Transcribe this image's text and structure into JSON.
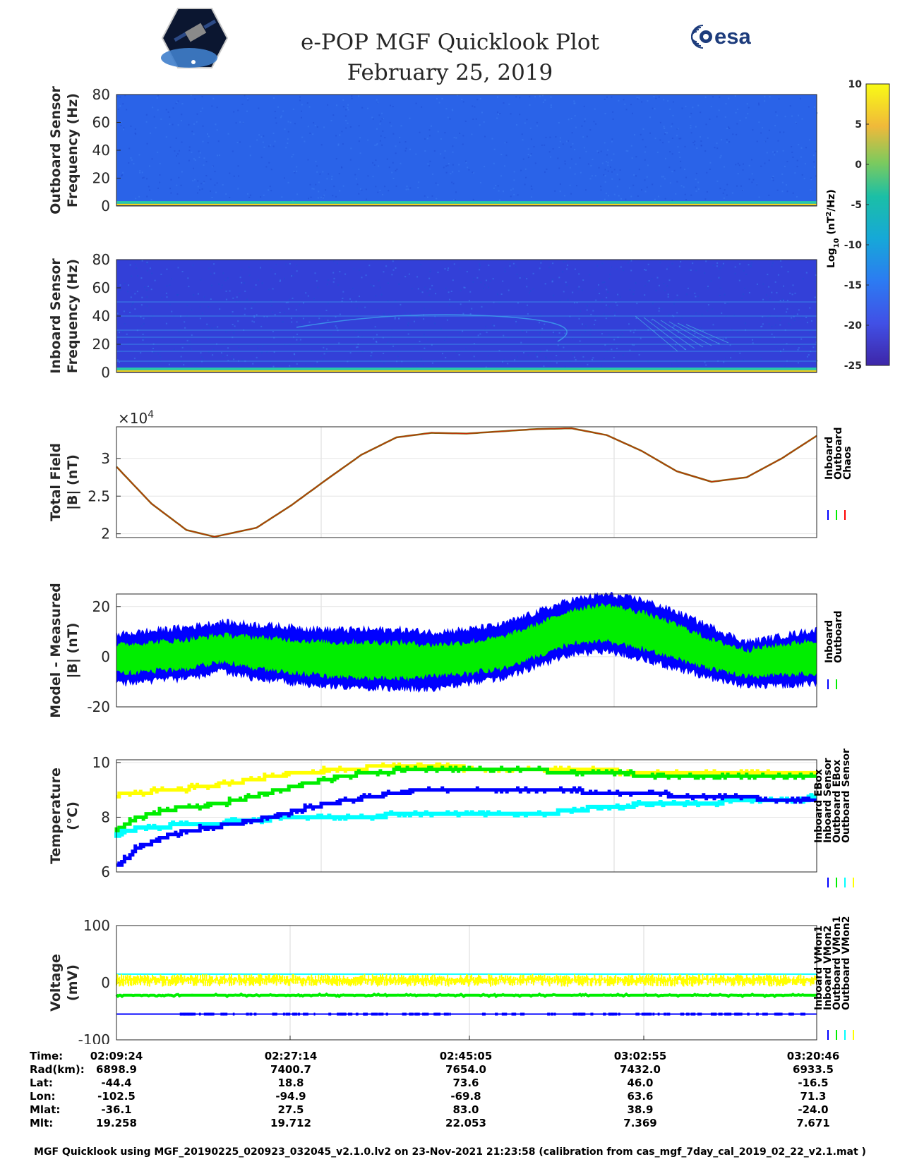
{
  "title": "e-POP MGF Quicklook Plot",
  "date": "February 25, 2019",
  "logos": {
    "epop_icon": "cassiope-mission-logo",
    "esa_text": "esa"
  },
  "colorbar": {
    "label": "Log10 (nT^2/Hz)",
    "label_main": "Log",
    "label_sub": "10",
    "label_unit": " (nT",
    "label_sup": "2",
    "label_tail": "/Hz)",
    "ticks": [
      "10",
      "5",
      "0",
      "-5",
      "-10",
      "-15",
      "-20",
      "-25"
    ],
    "range": [
      -25,
      10
    ]
  },
  "colors": {
    "inboard": "#0000ff",
    "outboard": "#00ee00",
    "chaos": "#ff0000",
    "cyan": "#00ffff",
    "yellow": "#ffff00",
    "spec_bg_outboard": "#2a63e8",
    "spec_bg_inboard": "#3340d8"
  },
  "chart_data": [
    {
      "type": "heatmap",
      "ylabel_line1": "Outboard Sensor",
      "ylabel_line2": "Frequency (Hz)",
      "ylim": [
        0,
        80
      ],
      "yticks": [
        "80",
        "60",
        "40",
        "20",
        "0"
      ],
      "description_values": {
        "background_log10_power": -13,
        "low_freq_band_log10_power": 5
      }
    },
    {
      "type": "heatmap",
      "ylabel_line1": "Inboard Sensor",
      "ylabel_line2": "Frequency (Hz)",
      "ylim": [
        0,
        80
      ],
      "yticks": [
        "80",
        "60",
        "40",
        "20",
        "0"
      ],
      "tone_lines_hz": [
        50,
        40,
        30,
        25,
        20,
        15,
        8
      ]
    },
    {
      "type": "line",
      "ylabel_line1": "Total Field",
      "ylabel_line2": "|B| (nT)",
      "multiplier": "×10",
      "multiplier_exp": "4",
      "ylim": [
        1.95,
        3.42
      ],
      "yticks": [
        "3",
        "2.5",
        "2"
      ],
      "legend": [
        "Inboard",
        "Outboard",
        "Chaos"
      ],
      "x": [
        0,
        0.05,
        0.1,
        0.14,
        0.2,
        0.25,
        0.3,
        0.35,
        0.4,
        0.45,
        0.5,
        0.55,
        0.6,
        0.65,
        0.7,
        0.75,
        0.8,
        0.85,
        0.9,
        0.95,
        1.0
      ],
      "series": [
        {
          "name": "Chaos",
          "values": [
            2.89,
            2.4,
            2.05,
            1.96,
            2.08,
            2.38,
            2.72,
            3.05,
            3.28,
            3.34,
            3.33,
            3.36,
            3.39,
            3.4,
            3.31,
            3.1,
            2.83,
            2.69,
            2.75,
            3.0,
            3.3
          ]
        }
      ]
    },
    {
      "type": "area",
      "ylabel_line1": "Model - Measured",
      "ylabel_line2": "|B| (nT)",
      "ylim": [
        -20,
        25
      ],
      "yticks": [
        "20",
        "0",
        "-20"
      ],
      "legend": [
        "Inboard",
        "Outboard"
      ],
      "x": [
        0,
        0.1,
        0.15,
        0.2,
        0.3,
        0.4,
        0.45,
        0.5,
        0.55,
        0.6,
        0.65,
        0.7,
        0.75,
        0.8,
        0.85,
        0.9,
        1.0
      ],
      "series": [
        {
          "name": "Inboard_upper",
          "values": [
            8,
            11,
            13,
            12,
            10,
            10,
            9,
            10,
            12,
            17,
            22,
            24,
            22,
            17,
            11,
            5,
            10
          ]
        },
        {
          "name": "Inboard_lower",
          "values": [
            -10,
            -8,
            -5,
            -8,
            -11,
            -12,
            -12,
            -10,
            -8,
            -3,
            2,
            3,
            0,
            -4,
            -8,
            -11,
            -10
          ]
        },
        {
          "name": "Outboard_upper",
          "values": [
            4,
            6,
            8,
            7,
            5,
            5,
            4,
            5,
            7,
            12,
            18,
            20,
            17,
            12,
            6,
            2,
            6
          ]
        },
        {
          "name": "Outboard_lower",
          "values": [
            -6,
            -4,
            -1,
            -4,
            -7,
            -8,
            -7,
            -6,
            -4,
            1,
            6,
            7,
            4,
            0,
            -4,
            -7,
            -6
          ]
        }
      ]
    },
    {
      "type": "line",
      "ylabel_line1": "Temperature",
      "ylabel_line2": "(°C)",
      "ylim": [
        6,
        10.1
      ],
      "yticks": [
        "10",
        "8",
        "6"
      ],
      "legend": [
        "Inboard EBox",
        "Inboard Sensor",
        "Outboard EBox",
        "Outboard Sensor"
      ],
      "x": [
        0,
        0.03,
        0.08,
        0.15,
        0.2,
        0.25,
        0.3,
        0.35,
        0.4,
        0.45,
        0.5,
        0.6,
        0.7,
        0.8,
        0.9,
        1.0
      ],
      "series": [
        {
          "name": "Inboard EBox",
          "values": [
            6.2,
            6.9,
            7.4,
            7.7,
            7.9,
            8.2,
            8.5,
            8.7,
            8.9,
            9.0,
            9.0,
            9.0,
            8.9,
            8.8,
            8.7,
            8.6
          ]
        },
        {
          "name": "Inboard Sensor",
          "values": [
            7.5,
            8.0,
            8.3,
            8.5,
            8.8,
            9.1,
            9.4,
            9.6,
            9.7,
            9.8,
            9.8,
            9.7,
            9.6,
            9.5,
            9.5,
            9.5
          ]
        },
        {
          "name": "Outboard EBox",
          "values": [
            7.4,
            7.6,
            7.7,
            7.8,
            7.9,
            8.0,
            8.0,
            8.0,
            8.1,
            8.1,
            8.1,
            8.1,
            8.4,
            8.5,
            8.6,
            8.7
          ]
        },
        {
          "name": "Outboard Sensor",
          "values": [
            8.8,
            8.9,
            9.0,
            9.2,
            9.4,
            9.6,
            9.7,
            9.8,
            9.9,
            9.9,
            9.8,
            9.7,
            9.7,
            9.6,
            9.6,
            9.6
          ]
        }
      ]
    },
    {
      "type": "line",
      "ylabel_line1": "Voltage",
      "ylabel_line2": "(mV)",
      "ylim": [
        -100,
        100
      ],
      "yticks": [
        "100",
        "0",
        "-100"
      ],
      "legend": [
        "Inboard VMon1",
        "Inboard VMon2",
        "Outboard VMon1",
        "Outboard VMon2"
      ],
      "series": [
        {
          "name": "Inboard VMon1",
          "values_level": -55
        },
        {
          "name": "Inboard VMon2",
          "values_level": -22
        },
        {
          "name": "Outboard VMon1",
          "values_level": 15
        },
        {
          "name": "Outboard VMon2",
          "values_level": 5
        }
      ]
    }
  ],
  "x_axis": {
    "times": [
      "02:09:24",
      "02:27:14",
      "02:45:05",
      "03:02:55",
      "03:20:46"
    ]
  },
  "ephemeris": {
    "labels": [
      "Time:",
      "Rad(km):",
      "Lat:",
      "Lon:",
      "Mlat:",
      "Mlt:"
    ],
    "columns": [
      {
        "time": "02:09:24",
        "rad": "6898.9",
        "lat": "-44.4",
        "lon": "-102.5",
        "mlat": "-36.1",
        "mlt": "19.258"
      },
      {
        "time": "02:27:14",
        "rad": "7400.7",
        "lat": "18.8",
        "lon": "-94.9",
        "mlat": "27.5",
        "mlt": "19.712"
      },
      {
        "time": "02:45:05",
        "rad": "7654.0",
        "lat": "73.6",
        "lon": "-69.8",
        "mlat": "83.0",
        "mlt": "22.053"
      },
      {
        "time": "03:02:55",
        "rad": "7432.0",
        "lat": "46.0",
        "lon": "63.6",
        "mlat": "38.9",
        "mlt": "7.369"
      },
      {
        "time": "03:20:46",
        "rad": "6933.5",
        "lat": "-16.5",
        "lon": "71.3",
        "mlat": "-24.0",
        "mlt": "7.671"
      }
    ]
  },
  "footer": "MGF Quicklook using MGF_20190225_020923_032045_v2.1.0.lv2 on 23-Nov-2021 21:23:58 (calibration from cas_mgf_7day_cal_2019_02_22_v2.1.mat )"
}
